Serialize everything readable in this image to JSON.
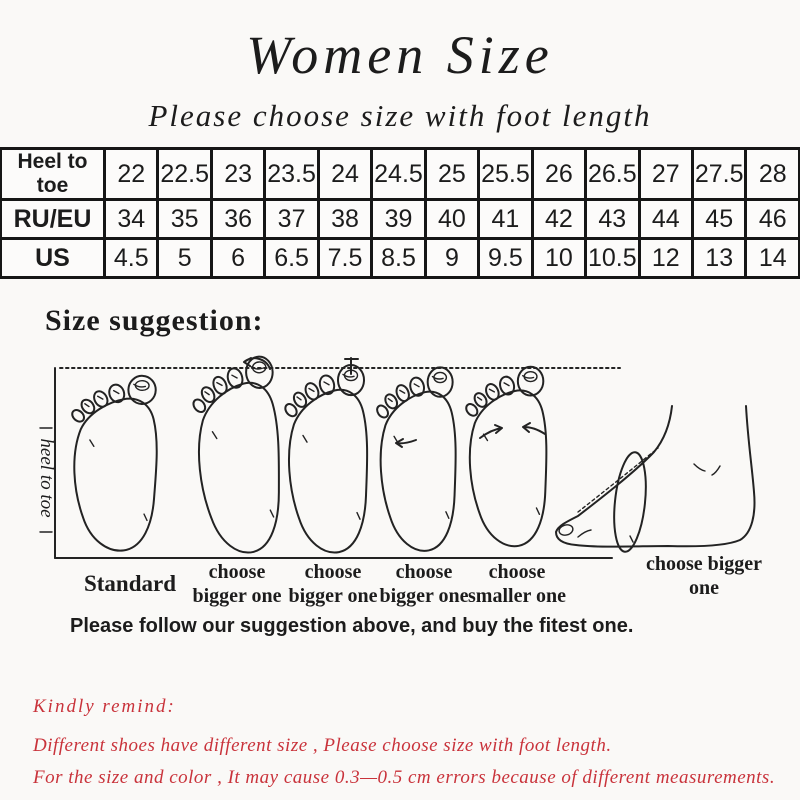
{
  "colors": {
    "background": "#faf9f7",
    "ink": "#1c1c1c",
    "table_border": "#161616",
    "reminder_red": "#c9333b"
  },
  "header": {
    "title": "Women Size",
    "subtitle": "Please choose size with foot length"
  },
  "size_table": {
    "rows": [
      {
        "label": "Heel to toe",
        "values": [
          "22",
          "22.5",
          "23",
          "23.5",
          "24",
          "24.5",
          "25",
          "25.5",
          "26",
          "26.5",
          "27",
          "27.5",
          "28"
        ]
      },
      {
        "label": "RU/EU",
        "values": [
          "34",
          "35",
          "36",
          "37",
          "38",
          "39",
          "40",
          "41",
          "42",
          "43",
          "44",
          "45",
          "46"
        ]
      },
      {
        "label": "US",
        "values": [
          "4.5",
          "5",
          "6",
          "6.5",
          "7.5",
          "8.5",
          "9",
          "9.5",
          "10",
          "10.5",
          "12",
          "13",
          "14"
        ]
      }
    ]
  },
  "suggestion": {
    "heading": "Size suggestion:",
    "axis_label": "heel to toe",
    "foot_labels": [
      "Standard",
      "choose bigger one",
      "choose bigger one",
      "choose bigger one",
      "choose smaller one",
      "choose bigger one"
    ],
    "note": "Please follow our suggestion above, and buy the fitest one."
  },
  "reminder": {
    "heading": "Kindly remind:",
    "lines": [
      "Different shoes have different size , Please choose size with foot length.",
      "For the size and color , It may cause 0.3—0.5 cm errors because of different measurements."
    ],
    "text_color": "#c9333b"
  }
}
